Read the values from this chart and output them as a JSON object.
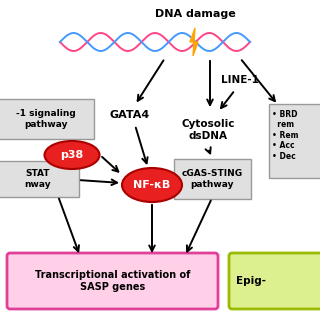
{
  "background_color": "#ffffff",
  "dna_label": "DNA damage",
  "line1_label": "LINE-1",
  "gata4_label": "GATA4",
  "cytosolic_label": "Cytosolic\ndsDNA",
  "nfkb_label": "NF-κB",
  "p38_label": "p38",
  "cgas_label": "cGAS-STING\npathway",
  "signaling_label": "-1 signaling\npathway",
  "stat_label": "STAT\nnway",
  "brd_label": "• BRD\n  rem\n• Rem\n• Acc\n• Dec",
  "transcription_label": "Transcriptional activation of\nSASP genes",
  "epig_label": "Epig-",
  "red_color": "#e82020",
  "pink_box_border": "#e0409a",
  "pink_fill": "#ffd0e8",
  "green_box_border": "#99bb00",
  "green_fill": "#ddf090",
  "gray_fill": "#e0e0e0",
  "gray_border": "#999999"
}
